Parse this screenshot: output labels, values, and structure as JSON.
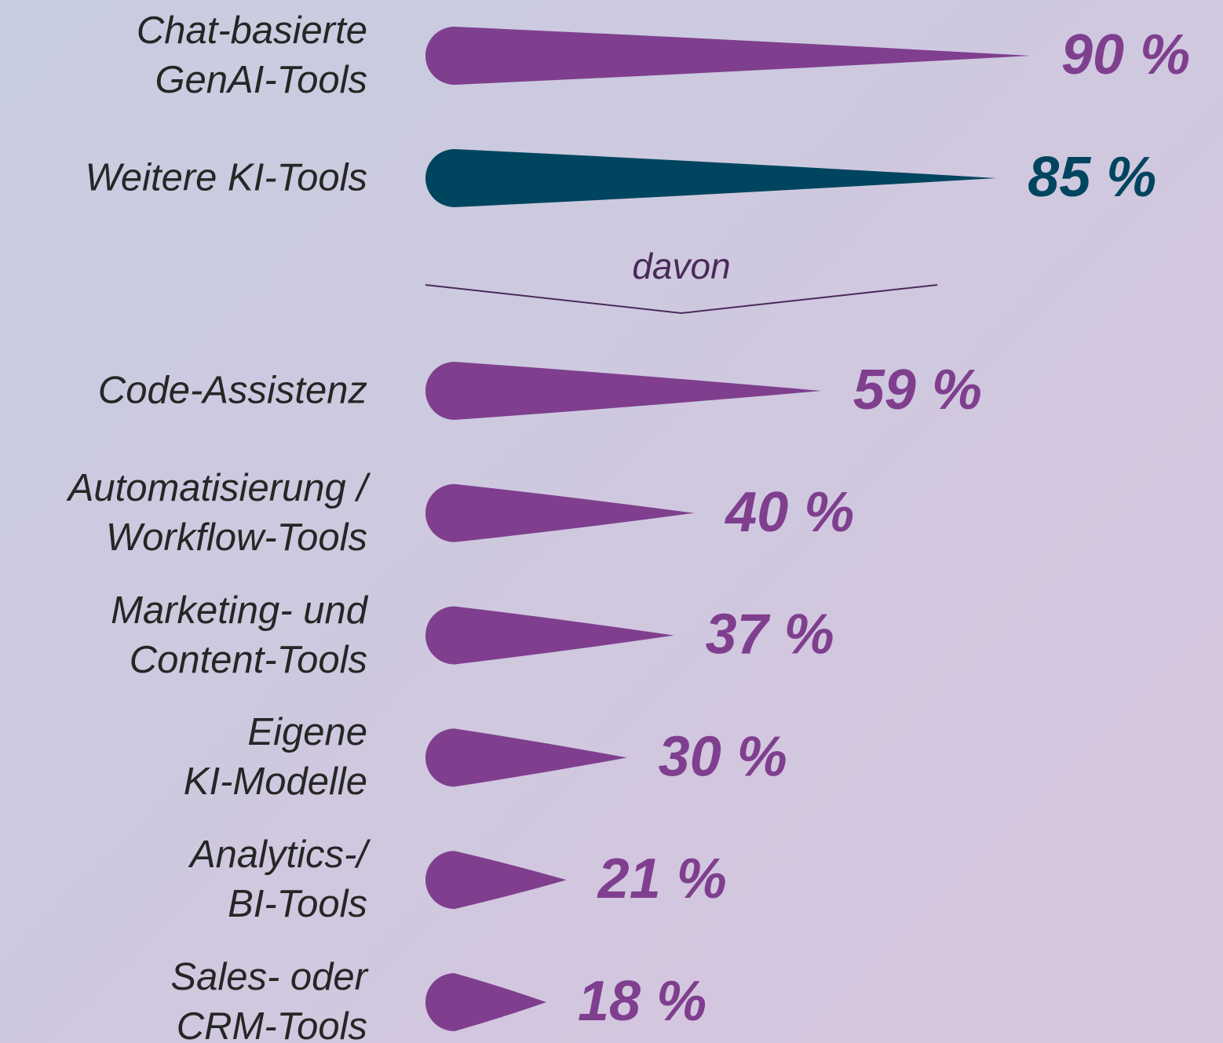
{
  "chart_data": {
    "type": "bar",
    "orientation": "horizontal",
    "categories": [
      "Chat-basierte\nGenAI-Tools",
      "Weitere KI-Tools",
      "Code-Assistenz",
      "Automatisierung /\nWorkflow-Tools",
      "Marketing- und\nContent-Tools",
      "Eigene\nKI-Modelle",
      "Analytics-/\nBI-Tools",
      "Sales- oder\nCRM-Tools"
    ],
    "values": [
      90,
      85,
      59,
      40,
      37,
      30,
      21,
      18
    ],
    "value_labels": [
      "90 %",
      "85 %",
      "59 %",
      "40 %",
      "37 %",
      "30 %",
      "21 %",
      "18 %"
    ],
    "colors": [
      "#7f3f8e",
      "#00455f",
      "#7f3f8e",
      "#7f3f8e",
      "#7f3f8e",
      "#7f3f8e",
      "#7f3f8e",
      "#7f3f8e"
    ],
    "annotation": "davon"
  }
}
